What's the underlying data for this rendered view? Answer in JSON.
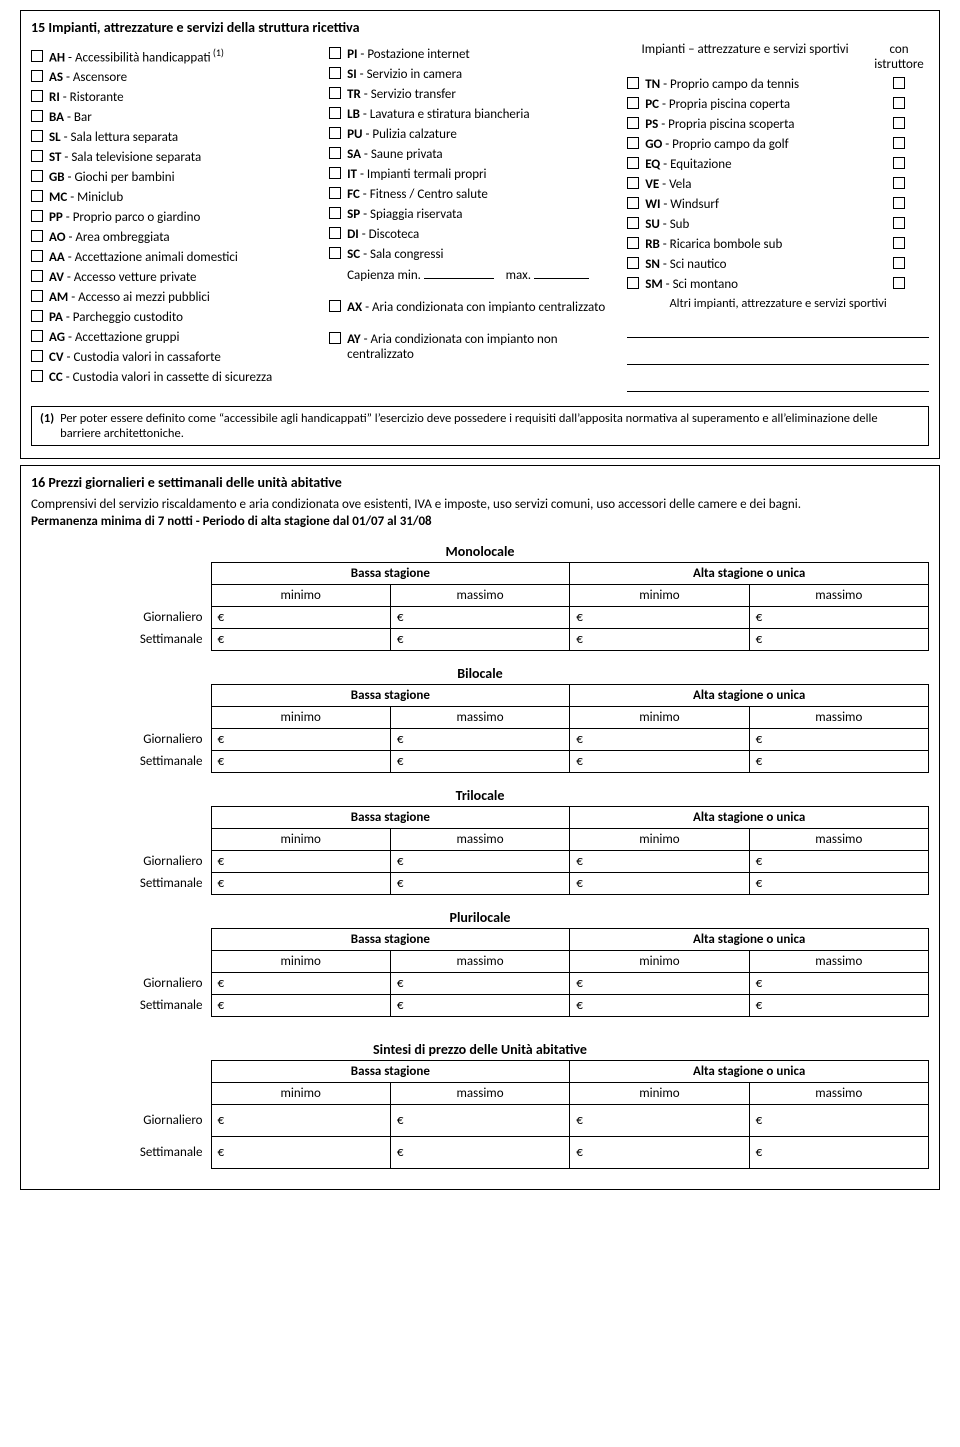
{
  "section15": {
    "title": "15 Impianti, attrezzature e servizi della struttura ricettiva",
    "col1": [
      {
        "code": "AH",
        "label": "Accessibilità handicappati",
        "sup": "(1)"
      },
      {
        "code": "AS",
        "label": "Ascensore"
      },
      {
        "code": "RI",
        "label": "Ristorante"
      },
      {
        "code": "BA",
        "label": "Bar"
      },
      {
        "code": "SL",
        "label": "Sala lettura separata"
      },
      {
        "code": "ST",
        "label": "Sala televisione separata"
      },
      {
        "code": "GB",
        "label": "Giochi per bambini"
      },
      {
        "code": "MC",
        "label": "Miniclub"
      },
      {
        "code": "PP",
        "label": "Proprio parco o giardino"
      },
      {
        "code": "AO",
        "label": "Area ombreggiata"
      },
      {
        "code": "AA",
        "label": "Accettazione animali domestici"
      },
      {
        "code": "AV",
        "label": "Accesso vetture private"
      },
      {
        "code": "AM",
        "label": "Accesso ai mezzi pubblici"
      },
      {
        "code": "PA",
        "label": "Parcheggio custodito"
      },
      {
        "code": "AG",
        "label": "Accettazione gruppi"
      },
      {
        "code": "CV",
        "label": "Custodia valori in cassaforte"
      },
      {
        "code": "CC",
        "label": "Custodia valori in cassette di sicurezza"
      }
    ],
    "col2": {
      "items": [
        {
          "code": "PI",
          "label": "Postazione internet"
        },
        {
          "code": "SI",
          "label": "Servizio in camera"
        },
        {
          "code": "TR",
          "label": "Servizio transfer"
        },
        {
          "code": "LB",
          "label": "Lavatura e stiratura biancheria"
        },
        {
          "code": "PU",
          "label": "Pulizia calzature"
        },
        {
          "code": "SA",
          "label": "Saune privata"
        },
        {
          "code": "IT",
          "label": "Impianti termali propri"
        },
        {
          "code": "FC",
          "label": "Fitness / Centro salute"
        },
        {
          "code": "SP",
          "label": "Spiaggia riservata"
        },
        {
          "code": "DI",
          "label": "Discoteca"
        },
        {
          "code": "SC",
          "label": "Sala congressi"
        }
      ],
      "capacity": {
        "prefix": "Capienza min.",
        "max": "max."
      },
      "ax": {
        "code": "AX",
        "label": "Aria condizionata con impianto centralizzato"
      },
      "ay": {
        "code": "AY",
        "label": "Aria condizionata con impianto non centralizzato"
      }
    },
    "col3": {
      "head1": "Impianti – attrezzature e servizi sportivi",
      "head2": "con istruttore",
      "items": [
        {
          "code": "TN",
          "label": "Proprio campo da tennis"
        },
        {
          "code": "PC",
          "label": "Propria piscina coperta"
        },
        {
          "code": "PS",
          "label": "Propria piscina scoperta"
        },
        {
          "code": "GO",
          "label": "Proprio campo da golf"
        },
        {
          "code": "EQ",
          "label": "Equitazione"
        },
        {
          "code": "VE",
          "label": "Vela"
        },
        {
          "code": "WI",
          "label": "Windsurf"
        },
        {
          "code": "SU",
          "label": "Sub"
        },
        {
          "code": "RB",
          "label": "Ricarica bombole sub"
        },
        {
          "code": "SN",
          "label": "Sci nautico"
        },
        {
          "code": "SM",
          "label": "Sci montano"
        }
      ],
      "other_label": "Altri impianti, attrezzature e servizi sportivi"
    },
    "footnote_num": "(1)",
    "footnote_text": "Per poter essere definito come “accessibile agli handicappati” l’esercizio deve possedere i requisiti dall’apposita normativa al superamento e all’eliminazione delle barriere architettoniche."
  },
  "section16": {
    "title": "16 Prezzi giornalieri e settimanali delle unità abitative",
    "subtitle": "Comprensivi del servizio riscaldamento e aria condizionata ove esistenti, IVA e imposte, uso servizi comuni, uso accessori delle camere e dei bagni.",
    "subtitle2": "Permanenza minima di 7 notti - Periodo di alta stagione dal 01/07 al 31/08",
    "row_labels": {
      "daily": "Giornaliero",
      "weekly": "Settimanale"
    },
    "col_groups": {
      "low": "Bassa stagione",
      "high": "Alta stagione o unica"
    },
    "sub_cols": {
      "min": "minimo",
      "max": "massimo"
    },
    "euro": "€",
    "tables": [
      {
        "title": "Monolocale"
      },
      {
        "title": "Bilocale"
      },
      {
        "title": "Trilocale"
      },
      {
        "title": "Plurilocale"
      }
    ],
    "summary_title": "Sintesi di prezzo delle Unità abitative"
  }
}
